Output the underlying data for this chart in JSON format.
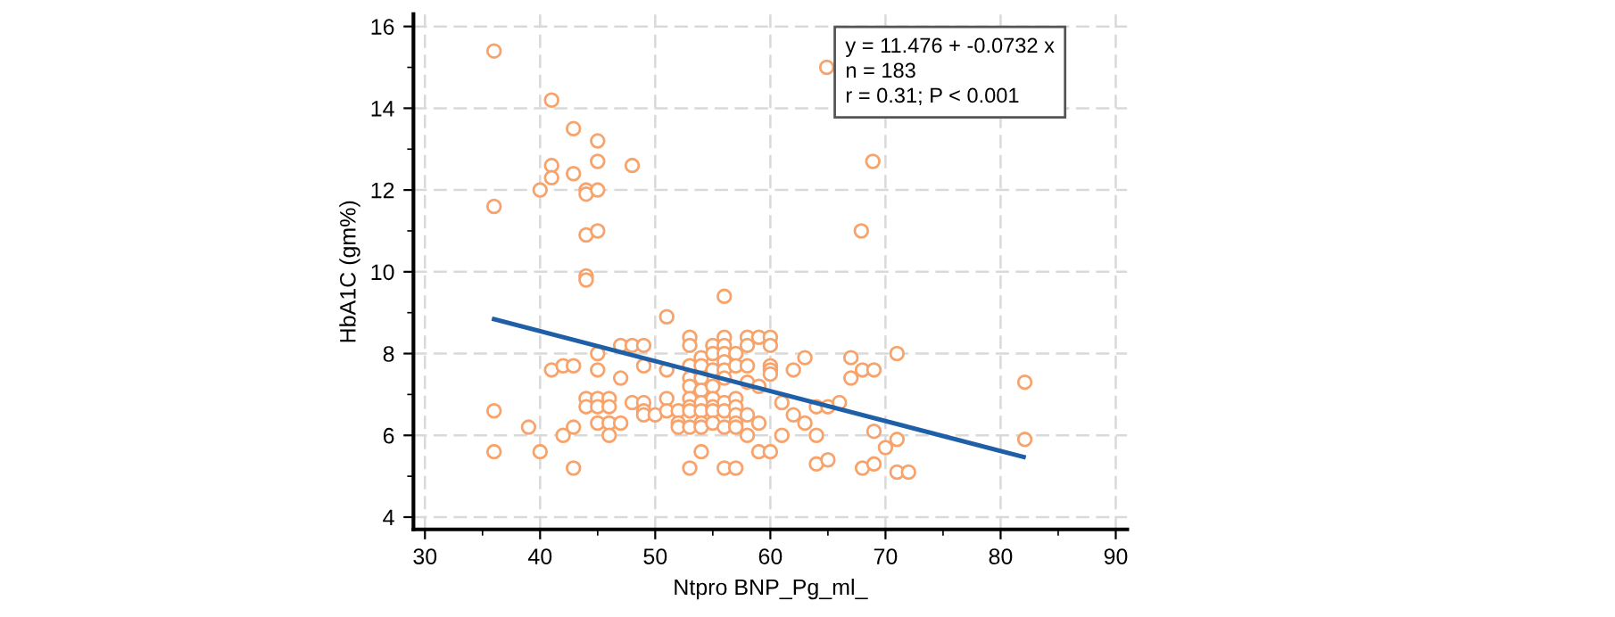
{
  "chart_data": {
    "type": "scatter",
    "xlabel": "Ntpro BNP_Pg_ml_",
    "ylabel": "HbA1C (gm%)",
    "xlim": [
      29,
      91
    ],
    "ylim": [
      3.7,
      16.3
    ],
    "xticks": [
      30,
      40,
      50,
      60,
      70,
      80,
      90
    ],
    "yticks": [
      4,
      6,
      8,
      10,
      12,
      14,
      16
    ],
    "grid": true,
    "legend": false,
    "annotations": [
      "y = 11.476 + -0.0732 x",
      "n = 183",
      "r = 0.31; P < 0.001"
    ],
    "series": [
      {
        "marker": "circle",
        "color": "#f7a36b",
        "x": [
          36,
          41,
          42.9,
          45,
          41,
          45,
          48,
          41,
          42.9,
          40,
          44,
          44,
          45,
          36,
          44,
          45,
          44,
          44,
          56,
          64.9,
          68.9,
          67.9,
          51,
          36,
          36,
          39,
          40,
          41,
          42,
          42.9,
          42,
          42.9,
          42.9,
          44,
          44,
          45,
          45,
          46,
          46,
          45,
          45,
          45,
          46,
          46,
          47,
          47,
          47,
          48,
          49,
          49,
          48,
          49,
          49,
          49,
          50,
          51,
          51,
          51,
          52,
          52,
          52,
          53,
          53,
          53,
          53,
          53,
          53,
          53,
          53,
          53,
          53,
          54,
          54,
          54,
          54,
          54,
          54,
          54,
          54,
          54,
          55,
          55,
          55,
          55,
          55,
          55,
          55,
          55,
          56,
          56,
          56,
          56,
          56,
          56,
          56,
          56,
          56,
          56,
          57,
          57,
          57,
          57,
          57,
          57,
          57,
          57,
          58,
          58,
          58,
          58,
          58,
          58,
          59,
          59,
          59,
          59,
          60,
          60,
          60,
          60,
          60,
          60,
          61,
          61,
          62,
          62,
          63,
          63,
          64,
          64,
          64,
          65,
          65,
          66,
          67,
          67,
          68,
          69,
          69,
          68,
          69,
          70,
          71,
          71,
          71,
          72,
          82.1,
          82.1
        ],
        "values": [
          15.4,
          14.2,
          13.5,
          13.2,
          12.6,
          12.7,
          12.6,
          12.3,
          12.4,
          12.0,
          12.0,
          11.9,
          12.0,
          11.6,
          10.9,
          11.0,
          9.9,
          9.8,
          9.4,
          15.0,
          12.7,
          11.0,
          8.9,
          6.6,
          5.6,
          6.2,
          5.6,
          7.6,
          7.7,
          7.7,
          6.0,
          6.2,
          5.2,
          6.9,
          6.7,
          6.9,
          6.7,
          6.9,
          6.7,
          8.0,
          7.6,
          6.3,
          6.3,
          6.0,
          8.2,
          7.4,
          6.3,
          8.2,
          8.2,
          7.7,
          6.8,
          6.8,
          6.6,
          6.5,
          6.5,
          7.6,
          6.9,
          6.6,
          6.6,
          6.3,
          6.2,
          8.4,
          8.2,
          7.7,
          7.4,
          7.2,
          6.9,
          6.7,
          6.6,
          6.2,
          5.2,
          7.9,
          7.7,
          7.4,
          7.1,
          6.8,
          6.6,
          6.3,
          6.2,
          5.6,
          8.2,
          8.0,
          7.6,
          7.2,
          6.9,
          6.7,
          6.6,
          6.3,
          8.4,
          8.2,
          8.0,
          7.8,
          7.6,
          7.4,
          6.8,
          6.6,
          6.2,
          5.2,
          8.0,
          7.7,
          6.9,
          6.7,
          6.5,
          6.3,
          6.2,
          5.2,
          8.4,
          8.2,
          7.7,
          7.3,
          6.5,
          6.0,
          8.4,
          7.2,
          6.3,
          5.6,
          8.4,
          8.2,
          7.7,
          7.6,
          7.5,
          5.6,
          6.8,
          6.0,
          7.6,
          6.5,
          7.9,
          6.3,
          6.7,
          6.0,
          5.3,
          6.7,
          5.4,
          6.8,
          7.9,
          7.4,
          7.6,
          7.6,
          6.1,
          5.2,
          5.3,
          5.7,
          8.0,
          5.9,
          5.1,
          5.1,
          7.3,
          5.9
        ]
      },
      {
        "type": "line",
        "marker": "none",
        "line_style": "solid",
        "color": "#1f5fa8",
        "x": [
          36,
          82
        ],
        "values": [
          8.84,
          5.47
        ]
      }
    ]
  }
}
